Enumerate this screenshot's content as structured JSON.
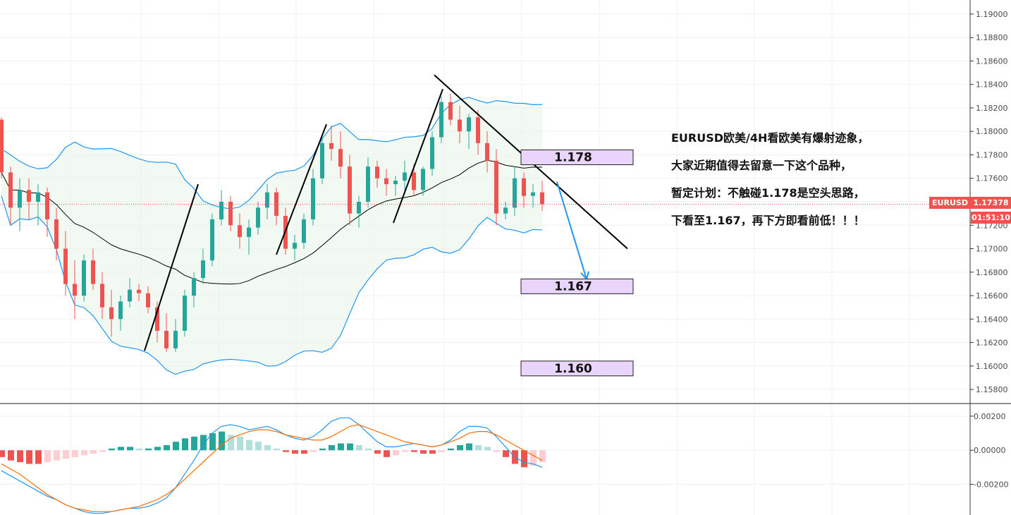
{
  "symbol": "EURUSD",
  "last_price": "1.17378",
  "countdown": "01:51:10",
  "colors": {
    "up": "#26a69a",
    "down": "#ef5350",
    "bb": "#2196f3",
    "ma": "#000000",
    "macd": "#2196f3",
    "signal": "#ff6d00",
    "level_fill": "#e9d4fb"
  },
  "annotation_lines": [
    "EURUSD欧美/4H看欧美有爆射迹象，",
    "大家近期值得去留意一下这个品种，",
    "暂定计划：不触碰1.178是空头思路，",
    "下看至1.167，再下方即看前低！！！"
  ],
  "levels": [
    {
      "label": "1.178",
      "value": 1.178
    },
    {
      "label": "1.167",
      "value": 1.167
    },
    {
      "label": "1.160",
      "value": 1.16
    }
  ],
  "chart_data": [
    {
      "type": "candlestick",
      "series": [
        {
          "name": "",
          "ohlc": [
            [
              1.181,
              1.1812,
              1.176,
              1.1765
            ],
            [
              1.1765,
              1.177,
              1.172,
              1.1735
            ],
            [
              1.1735,
              1.176,
              1.1715,
              1.175
            ],
            [
              1.175,
              1.176,
              1.1725,
              1.174
            ],
            [
              1.174,
              1.1755,
              1.172,
              1.1748
            ],
            [
              1.1748,
              1.1752,
              1.171,
              1.1725
            ],
            [
              1.1725,
              1.1735,
              1.169,
              1.17
            ],
            [
              1.17,
              1.1715,
              1.166,
              1.167
            ],
            [
              1.167,
              1.169,
              1.164,
              1.166
            ],
            [
              1.166,
              1.1695,
              1.1655,
              1.169
            ],
            [
              1.169,
              1.17,
              1.1665,
              1.167
            ],
            [
              1.167,
              1.168,
              1.164,
              1.165
            ],
            [
              1.165,
              1.1665,
              1.1625,
              1.164
            ],
            [
              1.164,
              1.166,
              1.163,
              1.1655
            ],
            [
              1.1655,
              1.1675,
              1.165,
              1.1665
            ],
            [
              1.1665,
              1.167,
              1.1655,
              1.1662
            ],
            [
              1.1662,
              1.1668,
              1.1645,
              1.165
            ],
            [
              1.165,
              1.1655,
              1.162,
              1.163
            ],
            [
              1.163,
              1.1645,
              1.1612,
              1.1615
            ],
            [
              1.1615,
              1.164,
              1.1612,
              1.163
            ],
            [
              1.163,
              1.1665,
              1.1625,
              1.166
            ],
            [
              1.166,
              1.168,
              1.165,
              1.1675
            ],
            [
              1.1675,
              1.17,
              1.167,
              1.169
            ],
            [
              1.169,
              1.173,
              1.1685,
              1.1725
            ],
            [
              1.1725,
              1.175,
              1.172,
              1.174
            ],
            [
              1.174,
              1.1745,
              1.1715,
              1.172
            ],
            [
              1.172,
              1.173,
              1.17,
              1.171
            ],
            [
              1.171,
              1.1725,
              1.1695,
              1.1718
            ],
            [
              1.1718,
              1.174,
              1.1712,
              1.1735
            ],
            [
              1.1735,
              1.1755,
              1.1725,
              1.1748
            ],
            [
              1.1748,
              1.1752,
              1.172,
              1.1728
            ],
            [
              1.1728,
              1.1735,
              1.1695,
              1.17
            ],
            [
              1.17,
              1.1712,
              1.169,
              1.1705
            ],
            [
              1.1705,
              1.173,
              1.17,
              1.1725
            ],
            [
              1.1725,
              1.1768,
              1.172,
              1.176
            ],
            [
              1.176,
              1.1795,
              1.1755,
              1.179
            ],
            [
              1.179,
              1.1805,
              1.1775,
              1.1785
            ],
            [
              1.1785,
              1.18,
              1.176,
              1.177
            ],
            [
              1.177,
              1.178,
              1.172,
              1.173
            ],
            [
              1.173,
              1.1745,
              1.1718,
              1.174
            ],
            [
              1.174,
              1.1778,
              1.1735,
              1.177
            ],
            [
              1.177,
              1.1775,
              1.1752,
              1.176
            ],
            [
              1.176,
              1.1768,
              1.1745,
              1.1755
            ],
            [
              1.1755,
              1.1762,
              1.1745,
              1.1758
            ],
            [
              1.1758,
              1.1775,
              1.175,
              1.1765
            ],
            [
              1.1765,
              1.1772,
              1.1745,
              1.175
            ],
            [
              1.175,
              1.177,
              1.1745,
              1.1768
            ],
            [
              1.1768,
              1.18,
              1.1762,
              1.1795
            ],
            [
              1.1795,
              1.183,
              1.179,
              1.1825
            ],
            [
              1.1825,
              1.1832,
              1.1805,
              1.181
            ],
            [
              1.181,
              1.1822,
              1.179,
              1.18
            ],
            [
              1.18,
              1.1815,
              1.1785,
              1.1812
            ],
            [
              1.1812,
              1.1818,
              1.178,
              1.179
            ],
            [
              1.179,
              1.18,
              1.1765,
              1.1775
            ],
            [
              1.1775,
              1.1785,
              1.172,
              1.173
            ],
            [
              1.173,
              1.174,
              1.1725,
              1.1735
            ],
            [
              1.1735,
              1.177,
              1.1728,
              1.176
            ],
            [
              1.176,
              1.1765,
              1.1735,
              1.1745
            ],
            [
              1.1745,
              1.1755,
              1.1735,
              1.1748
            ],
            [
              1.1748,
              1.1758,
              1.1732,
              1.1738
            ]
          ]
        }
      ],
      "xlabel": "",
      "ylabel": "",
      "ylim": [
        1.1568,
        1.1912
      ],
      "y_ticks": [
        "1.19000",
        "1.18800",
        "1.18600",
        "1.18400",
        "1.18200",
        "1.18000",
        "1.17800",
        "1.17600",
        "1.17400",
        "1.17200",
        "1.17000",
        "1.16800",
        "1.16600",
        "1.16400",
        "1.16200",
        "1.16000",
        "1.15800"
      ],
      "grid": true
    },
    {
      "type": "bar",
      "series": [
        {
          "name": "",
          "histogram": [
            -0.0004,
            -0.0006,
            -0.0007,
            -0.0008,
            -0.0008,
            -0.0007,
            -0.0006,
            -0.0005,
            -0.0004,
            -0.0003,
            -0.0002,
            -0.0001,
            0.0001,
            0.0002,
            0.0002,
            0.0001,
            0.0001,
            0.0002,
            0.0003,
            0.0005,
            0.0007,
            0.0008,
            0.0009,
            0.001,
            0.0011,
            0.0009,
            0.0008,
            0.0006,
            0.0005,
            0.0003,
            0.0001,
            -0.0001,
            -0.0002,
            -0.0002,
            -0.0001,
            0.0001,
            0.0003,
            0.0004,
            0.0004,
            0.0003,
            0.0001,
            -0.0002,
            -0.0004,
            -0.0003,
            -0.0001,
            -0.0001,
            -0.0002,
            -0.0002,
            -0.0001,
            0.0001,
            0.0003,
            0.0004,
            0.0003,
            0.0002,
            -0.0001,
            -0.0004,
            -0.0008,
            -0.001,
            -0.0009,
            -0.0007
          ],
          "macd": [
            -0.0012,
            -0.0015,
            -0.0018,
            -0.0021,
            -0.0024,
            -0.0027,
            -0.0029,
            -0.0032,
            -0.0034,
            -0.0036,
            -0.0037,
            -0.0037,
            -0.0036,
            -0.0035,
            -0.0034,
            -0.0034,
            -0.0033,
            -0.0031,
            -0.0028,
            -0.0022,
            -0.0014,
            -0.0006,
            0.0003,
            0.001,
            0.0014,
            0.0015,
            0.0014,
            0.0012,
            0.0013,
            0.0014,
            0.0012,
            0.0009,
            0.0007,
            0.0006,
            0.0008,
            0.0012,
            0.0017,
            0.0019,
            0.0019,
            0.0015,
            0.001,
            0.0005,
            0.0002,
            0.0002,
            0.0003,
            0.0004,
            0.0003,
            0.0002,
            0.0003,
            0.0006,
            0.0011,
            0.0014,
            0.0014,
            0.0013,
            0.0008,
            0.0002,
            -0.0004,
            -0.0007,
            -0.0008,
            -0.001
          ],
          "signal": [
            -0.0008,
            -0.0011,
            -0.0014,
            -0.0018,
            -0.0022,
            -0.0026,
            -0.0029,
            -0.0032,
            -0.0034,
            -0.0035,
            -0.0036,
            -0.0036,
            -0.0036,
            -0.0035,
            -0.0034,
            -0.0033,
            -0.0031,
            -0.0029,
            -0.0026,
            -0.0022,
            -0.0017,
            -0.0012,
            -0.0007,
            -0.0002,
            0.0003,
            0.0007,
            0.0009,
            0.0011,
            0.0012,
            0.0012,
            0.0011,
            0.0009,
            0.0008,
            0.0007,
            0.0006,
            0.0006,
            0.0008,
            0.0011,
            0.0014,
            0.0015,
            0.0013,
            0.0011,
            0.0009,
            0.0007,
            0.0005,
            0.0004,
            0.0003,
            0.0002,
            0.0003,
            0.0005,
            0.0007,
            0.001,
            0.0011,
            0.0011,
            0.0009,
            0.0006,
            0.0003,
            0.0,
            -0.0003,
            -0.0006
          ]
        }
      ],
      "ylim": [
        -0.0038,
        0.0027
      ],
      "y_ticks": [
        "0.00200",
        "0.00000",
        "-0.00200"
      ],
      "grid": true
    }
  ]
}
